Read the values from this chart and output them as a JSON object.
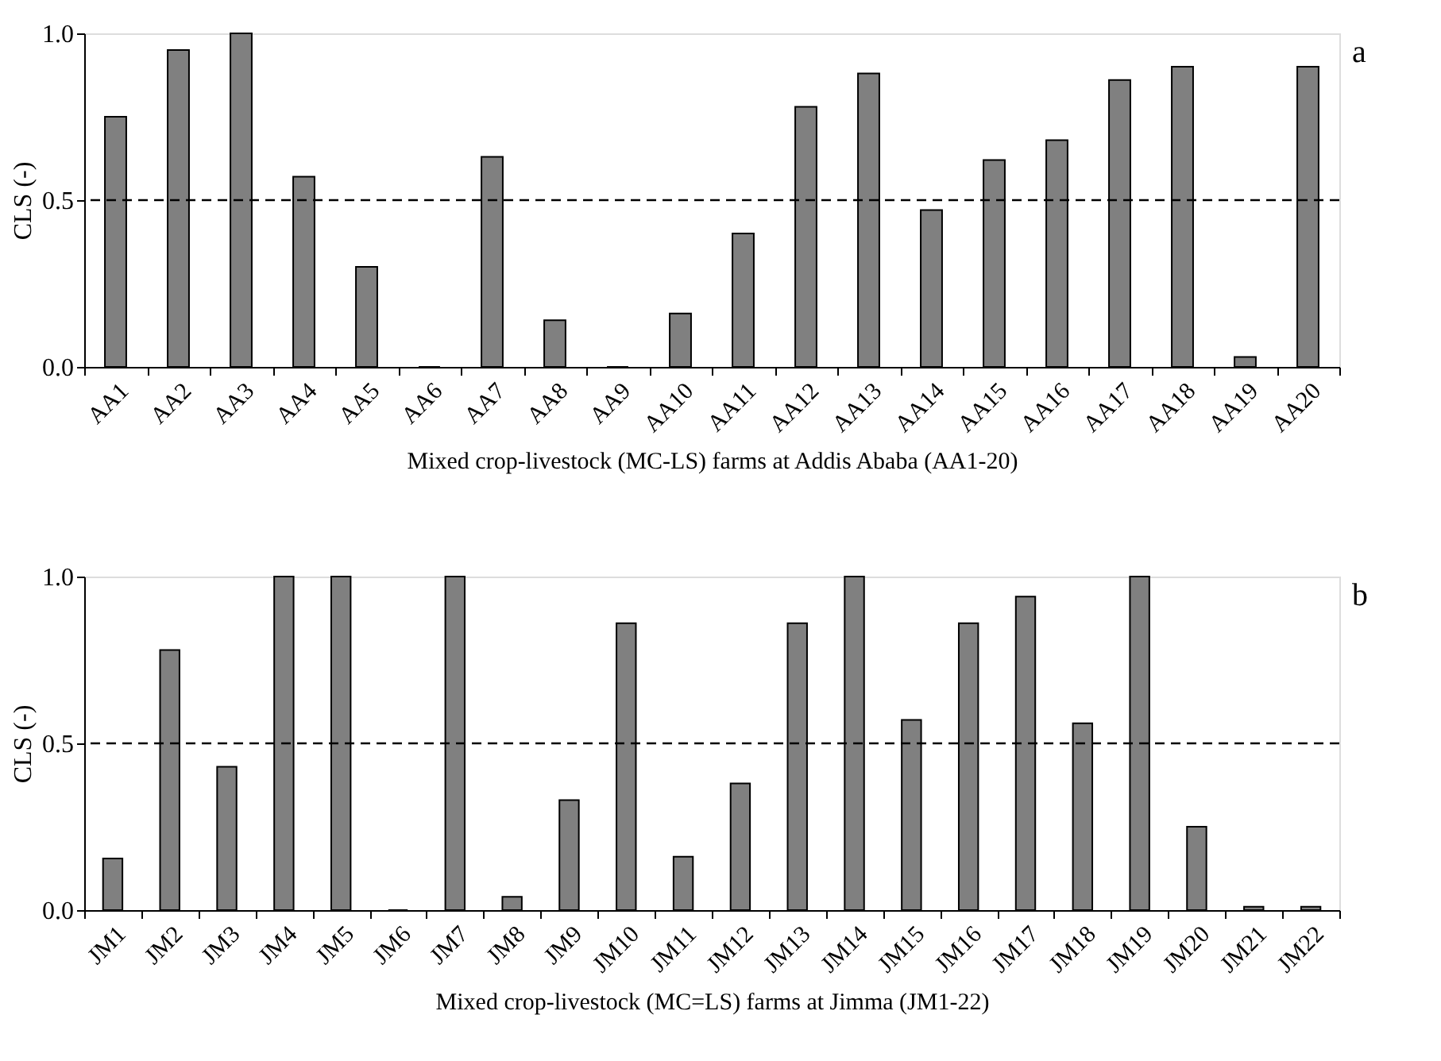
{
  "chart_data": [
    {
      "type": "bar",
      "categories": [
        "AA1",
        "AA2",
        "AA3",
        "AA4",
        "AA5",
        "AA6",
        "AA7",
        "AA8",
        "AA9",
        "AA10",
        "AA11",
        "AA12",
        "AA13",
        "AA14",
        "AA15",
        "AA16",
        "AA17",
        "AA18",
        "AA19",
        "AA20"
      ],
      "values": [
        0.75,
        0.95,
        1.0,
        0.57,
        0.3,
        0,
        0.63,
        0.14,
        0,
        0.16,
        0.4,
        0.78,
        0.88,
        0.47,
        0.62,
        0.68,
        0.86,
        0.9,
        0.03,
        0.9
      ],
      "color": "#808080",
      "ylabel": "CLS (-)",
      "xlabel": "Mixed crop-livestock (MC-LS) farms at Addis Ababa (AA1-20)",
      "ylim": [
        0,
        1
      ],
      "yticks": [
        {
          "value": 0,
          "label": "0.0"
        },
        {
          "value": 0.5,
          "label": "0.5"
        },
        {
          "value": 1,
          "label": "1.0"
        }
      ],
      "ref_lines": [
        {
          "axis": "y",
          "value": 0.5,
          "line_style": "dashed",
          "color": "#000000"
        }
      ],
      "annotations": [
        "a"
      ],
      "grid": false
    },
    {
      "type": "bar",
      "categories": [
        "JM1",
        "JM2",
        "JM3",
        "JM4",
        "JM5",
        "JM6",
        "JM7",
        "JM8",
        "JM9",
        "JM10",
        "JM11",
        "JM12",
        "JM13",
        "JM14",
        "JM15",
        "JM16",
        "JM17",
        "JM18",
        "JM19",
        "JM20",
        "JM21",
        "JM22"
      ],
      "values": [
        0.155,
        0.78,
        0.43,
        1.0,
        1.0,
        0,
        1.0,
        0.04,
        0.33,
        0.86,
        0.16,
        0.38,
        0.86,
        1.0,
        0.57,
        0.86,
        0.94,
        0.56,
        1.0,
        0.25,
        0.01,
        0.01
      ],
      "color": "#808080",
      "ylabel": "CLS (-)",
      "xlabel": "Mixed crop-livestock (MC=LS) farms at Jimma (JM1-22)",
      "ylim": [
        0,
        1
      ],
      "yticks": [
        {
          "value": 0,
          "label": "0.0"
        },
        {
          "value": 0.5,
          "label": "0.5"
        },
        {
          "value": 1,
          "label": "1.0"
        }
      ],
      "ref_lines": [
        {
          "axis": "y",
          "value": 0.5,
          "line_style": "dashed",
          "color": "#000000"
        }
      ],
      "annotations": [
        "b"
      ],
      "grid": false
    }
  ]
}
